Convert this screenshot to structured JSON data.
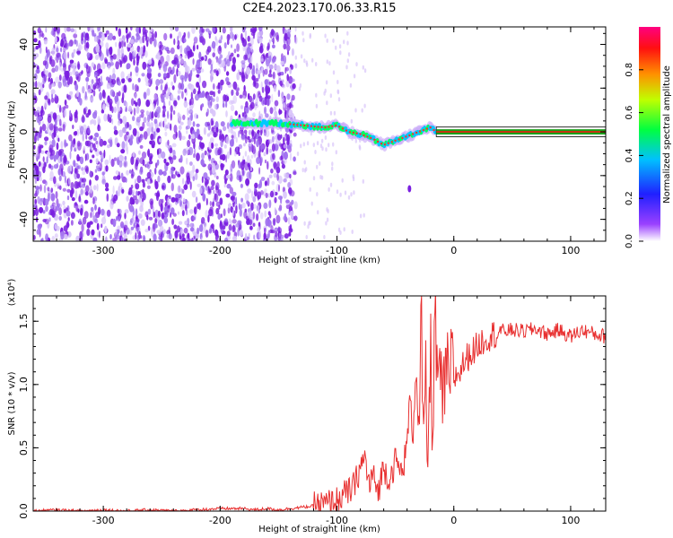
{
  "title": "C2E4.2023.170.06.33.R15",
  "colors": {
    "spec_points": "#7a1fe0",
    "spec_light": "#c9a8f5",
    "line_red": "#e83030",
    "ridge_green": "#1aa01a"
  },
  "chart_data": [
    {
      "type": "heatmap",
      "name": "spectrogram",
      "xlabel": "Height of straight line (km)",
      "ylabel": "Frequency (Hz)",
      "xlim": [
        -360,
        130
      ],
      "ylim": [
        -50,
        48
      ],
      "xticks": [
        -300,
        -200,
        -100,
        0,
        100
      ],
      "yticks": [
        -40,
        -20,
        0,
        20,
        40
      ],
      "colorbar": {
        "label": "Normalized spectral amplitude",
        "range": [
          0,
          1
        ],
        "ticks": [
          0.0,
          0.2,
          0.4,
          0.6,
          0.8
        ],
        "tick_labels": [
          "0.0",
          "0.2",
          "0.4",
          "0.6",
          "0.8"
        ],
        "colors": [
          "#ffffff",
          "#7a00ff",
          "#0000ff",
          "#00b0ff",
          "#00ff00",
          "#ffff00",
          "#ff8000",
          "#ff0000",
          "#ff0080"
        ]
      },
      "ridge": [
        {
          "x": -190,
          "f": 4
        },
        {
          "x": -170,
          "f": 4
        },
        {
          "x": -150,
          "f": 4
        },
        {
          "x": -130,
          "f": 3
        },
        {
          "x": -110,
          "f": 2
        },
        {
          "x": -100,
          "f": 3
        },
        {
          "x": -90,
          "f": 0
        },
        {
          "x": -80,
          "f": -1
        },
        {
          "x": -70,
          "f": -3
        },
        {
          "x": -60,
          "f": -6
        },
        {
          "x": -50,
          "f": -4
        },
        {
          "x": -40,
          "f": -2
        },
        {
          "x": -30,
          "f": 0
        },
        {
          "x": -20,
          "f": 2
        },
        {
          "x": -15,
          "f": 0
        },
        {
          "x": 0,
          "f": 0
        },
        {
          "x": 130,
          "f": 0
        }
      ]
    },
    {
      "type": "line",
      "name": "snr",
      "xlabel": "Height of straight line (km)",
      "ylabel": "SNR (10 * v/v)",
      "scale_label": "(x10⁴)",
      "xlim": [
        -360,
        130
      ],
      "ylim": [
        0,
        1.7
      ],
      "xticks": [
        -300,
        -200,
        -100,
        0,
        100
      ],
      "yticks": [
        0.0,
        0.5,
        1.0,
        1.5
      ],
      "ytick_labels": [
        "0.0",
        "0.5",
        "1.0",
        "1.5"
      ],
      "series": [
        {
          "x": [
            -360,
            -340,
            -320,
            -300,
            -280,
            -260,
            -240,
            -220,
            -200,
            -180,
            -170,
            -160,
            -150,
            -140,
            -130,
            -120,
            -110,
            -100,
            -95,
            -90,
            -85,
            -80,
            -76,
            -72,
            -70,
            -65,
            -60,
            -55,
            -50,
            -45,
            -40,
            -38,
            -35,
            -32,
            -30,
            -28,
            -26,
            -24,
            -22,
            -20,
            -18,
            -16,
            -14,
            -12,
            -10,
            -8,
            -6,
            -4,
            -2,
            0,
            5,
            10,
            15,
            20,
            25,
            30,
            35,
            40,
            50,
            60,
            70,
            80,
            90,
            100,
            110,
            120,
            130
          ],
          "y": [
            0.0,
            0.01,
            0.0,
            0.01,
            0.0,
            0.01,
            0.0,
            0.01,
            0.02,
            0.02,
            0.01,
            0.02,
            0.01,
            0.02,
            0.03,
            0.04,
            0.05,
            0.08,
            0.12,
            0.15,
            0.2,
            0.35,
            0.42,
            0.18,
            0.3,
            0.15,
            0.35,
            0.25,
            0.4,
            0.3,
            0.5,
            0.9,
            0.6,
            1.2,
            0.5,
            1.6,
            0.4,
            1.0,
            0.3,
            1.3,
            0.6,
            1.7,
            0.8,
            1.3,
            0.7,
            1.0,
            1.15,
            0.9,
            1.2,
            1.05,
            1.1,
            1.2,
            1.25,
            1.3,
            1.35,
            1.38,
            1.4,
            1.42,
            1.43,
            1.42,
            1.44,
            1.4,
            1.43,
            1.38,
            1.43,
            1.4,
            1.38
          ]
        }
      ]
    }
  ]
}
